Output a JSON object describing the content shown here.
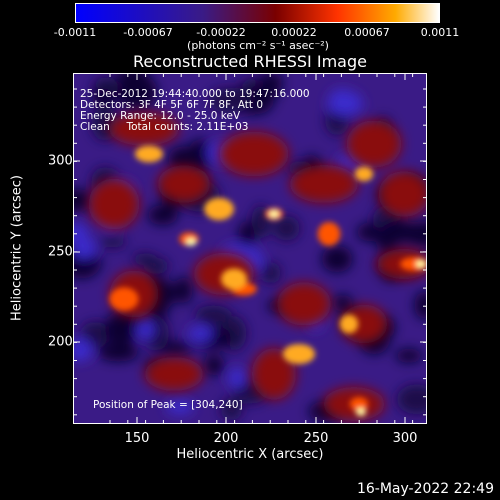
{
  "colorbar": {
    "ticks": [
      "-0.0011",
      "-0.00067",
      "-0.00022",
      "0.00022",
      "0.00067",
      "0.0011"
    ],
    "units": "(photons cm⁻² s⁻¹ asec⁻²)"
  },
  "plot": {
    "title": "Reconstructed RHESSI Image",
    "info": {
      "line1": "25-Dec-2012 19:44:40.000 to 19:47:16.000",
      "line2": "Detectors: 3F 4F 5F 6F 7F 8F, Att 0",
      "line3": "Energy Range: 12.0 - 25.0 keV",
      "line4": "Clean     Total counts: 2.11E+03"
    },
    "peak_label": "Position of Peak = [304,240]",
    "x_axis": {
      "title": "Heliocentric X (arcsec)",
      "ticks": [
        "150",
        "200",
        "250",
        "300"
      ]
    },
    "y_axis": {
      "title": "Heliocentric Y (arcsec)",
      "ticks": [
        "300",
        "250",
        "200"
      ]
    }
  },
  "footer": {
    "date": "16-May-2022 22:49"
  },
  "colors": {
    "cmap": [
      "#0000ff",
      "#3a1b86",
      "#7a0000",
      "#ff3300",
      "#ffaa00",
      "#ffffff"
    ]
  }
}
